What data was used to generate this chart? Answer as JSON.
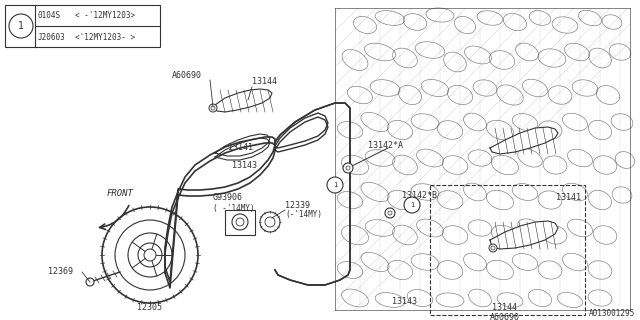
{
  "bg_color": "#ffffff",
  "line_color": "#333333",
  "table": {
    "circle_label": "1",
    "row1_col1": "0104S",
    "row1_col2": "< -'12MY1203>",
    "row2_col1": "J20603",
    "row2_col2": "<'12MY1203- >"
  },
  "diagram_number": "A013001295",
  "front_label": "FRONT"
}
